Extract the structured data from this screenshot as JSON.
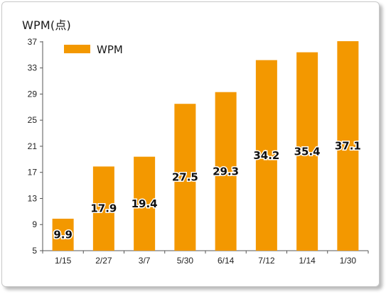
{
  "chart_data": {
    "type": "bar",
    "title": "WPM(点)",
    "xlabel": "",
    "ylabel": "",
    "categories": [
      "1/15",
      "2/27",
      "3/7",
      "5/30",
      "6/14",
      "7/12",
      "1/14",
      "1/30"
    ],
    "series": [
      {
        "name": "WPM",
        "values": [
          9.9,
          17.9,
          19.4,
          27.5,
          29.3,
          34.2,
          35.4,
          37.1
        ],
        "data_labels": [
          "9.9",
          "17.9",
          "19.4",
          "27.5",
          "29.3",
          "34.2",
          "35.4",
          "37.1"
        ],
        "color": "#f39800"
      }
    ],
    "ylim": [
      5,
      37.1
    ],
    "yticks": [
      5,
      9,
      13,
      17,
      21,
      25,
      29,
      33,
      37
    ],
    "ytick_labels": [
      "5",
      "9",
      "13",
      "17",
      "21",
      "25",
      "29",
      "33",
      "37"
    ],
    "grid": false,
    "legend": "top-left"
  }
}
